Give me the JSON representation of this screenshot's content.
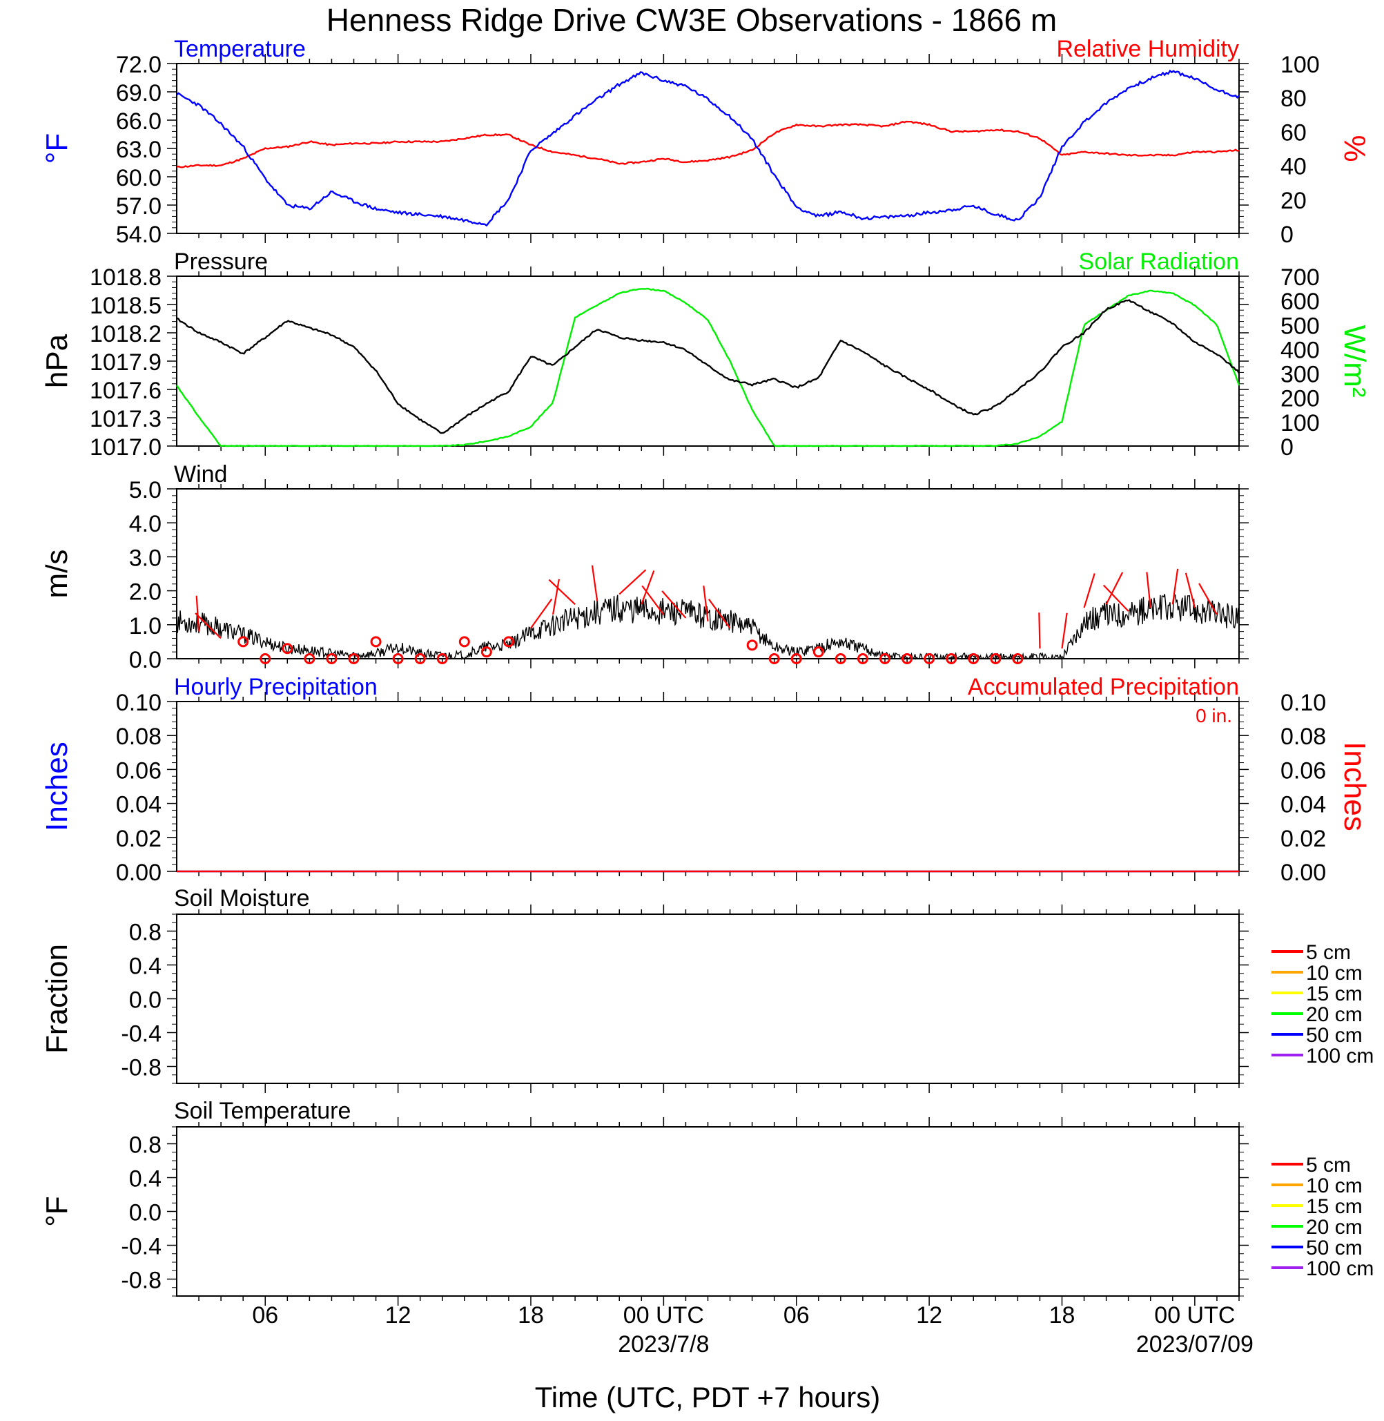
{
  "title": "Henness Ridge Drive CW3E Observations - 1866 m",
  "xaxis": {
    "label": "Time (UTC, PDT +7 hours)",
    "ticks": [
      "06",
      "12",
      "18",
      "00 UTC",
      "06",
      "12",
      "18",
      "00 UTC"
    ],
    "dates": [
      "2023/7/8",
      "2023/07/09"
    ]
  },
  "colors": {
    "temperature": "#0000ff",
    "humidity": "#ff0000",
    "pressure": "#000000",
    "solar": "#00ee00",
    "wind": "#000000",
    "wind_barbs": "#ff0000",
    "hourly_precip": "#0000ff",
    "accum_precip": "#ff0000"
  },
  "chart_data": [
    {
      "type": "line",
      "panel": "temperature-humidity",
      "left_title": "Temperature",
      "right_title": "Relative Humidity",
      "ylabel_left": "°F",
      "ylabel_right": "%",
      "ylim_left": [
        54,
        72
      ],
      "ylim_right": [
        0,
        100
      ],
      "left_ticks": [
        "72.0",
        "69.0",
        "66.0",
        "63.0",
        "60.0",
        "57.0",
        "54.0"
      ],
      "right_ticks": [
        "100",
        "80",
        "60",
        "40",
        "20",
        "0"
      ],
      "x_hours": [
        0,
        1,
        2,
        3,
        4,
        5,
        6,
        7,
        8,
        9,
        10,
        11,
        12,
        13,
        14,
        15,
        16,
        17,
        18,
        19,
        20,
        21,
        22,
        23,
        24,
        25,
        26,
        27,
        28,
        29,
        30,
        31,
        32,
        33,
        34,
        35,
        36,
        37,
        38,
        39,
        40,
        41,
        42,
        43,
        44,
        45,
        46,
        47,
        48
      ],
      "series": [
        {
          "name": "Temperature",
          "axis": "left",
          "values": [
            68.8,
            67.6,
            65.6,
            63.2,
            59.8,
            57.0,
            56.6,
            58.4,
            57.4,
            56.6,
            56.2,
            56.0,
            55.8,
            55.4,
            55.0,
            57.6,
            62.8,
            64.6,
            66.5,
            68.2,
            69.8,
            71.0,
            70.2,
            69.6,
            68.2,
            66.4,
            64.0,
            60.2,
            56.8,
            55.8,
            56.3,
            55.6,
            55.7,
            55.9,
            56.2,
            56.5,
            56.9,
            56.0,
            55.4,
            57.8,
            63.2,
            65.8,
            67.8,
            69.4,
            70.4,
            71.2,
            70.4,
            69.2,
            68.5
          ]
        },
        {
          "name": "Relative Humidity",
          "axis": "right",
          "values": [
            39,
            40,
            40,
            44,
            50,
            51,
            54,
            52,
            53,
            53,
            54,
            54,
            54,
            56,
            58,
            58,
            52,
            48,
            46,
            44,
            41,
            42,
            44,
            42,
            43,
            45,
            49,
            59,
            64,
            63,
            64,
            64,
            63,
            66,
            64,
            60,
            60,
            61,
            60,
            56,
            46,
            48,
            47,
            46,
            46,
            46,
            48,
            48,
            49
          ]
        }
      ]
    },
    {
      "type": "line",
      "panel": "pressure-solar",
      "left_title": "Pressure",
      "right_title": "Solar Radiation",
      "ylabel_left": "hPa",
      "ylabel_right": "W/m²",
      "ylim_left": [
        1017.0,
        1018.8
      ],
      "ylim_right": [
        0,
        700
      ],
      "left_ticks": [
        "1018.8",
        "1018.5",
        "1018.2",
        "1017.9",
        "1017.6",
        "1017.3",
        "1017.0"
      ],
      "right_ticks": [
        "700",
        "600",
        "500",
        "400",
        "300",
        "200",
        "100",
        "0"
      ],
      "x_hours": [
        0,
        1,
        2,
        3,
        4,
        5,
        6,
        7,
        8,
        9,
        10,
        11,
        12,
        13,
        14,
        15,
        16,
        17,
        18,
        19,
        20,
        21,
        22,
        23,
        24,
        25,
        26,
        27,
        28,
        29,
        30,
        31,
        32,
        33,
        34,
        35,
        36,
        37,
        38,
        39,
        40,
        41,
        42,
        43,
        44,
        45,
        46,
        47,
        48
      ],
      "series": [
        {
          "name": "Pressure",
          "axis": "left",
          "values": [
            1018.35,
            1018.2,
            1018.1,
            1017.98,
            1018.15,
            1018.33,
            1018.25,
            1018.18,
            1018.05,
            1017.8,
            1017.45,
            1017.28,
            1017.13,
            1017.3,
            1017.45,
            1017.58,
            1017.95,
            1017.85,
            1018.05,
            1018.24,
            1018.15,
            1018.12,
            1018.1,
            1018.02,
            1017.85,
            1017.7,
            1017.65,
            1017.71,
            1017.62,
            1017.72,
            1018.12,
            1018.0,
            1017.85,
            1017.72,
            1017.6,
            1017.45,
            1017.33,
            1017.42,
            1017.6,
            1017.78,
            1018.05,
            1018.2,
            1018.45,
            1018.55,
            1018.42,
            1018.3,
            1018.1,
            1017.98,
            1017.78
          ]
        },
        {
          "name": "Solar Radiation",
          "axis": "right",
          "values": [
            250,
            120,
            0,
            0,
            0,
            0,
            0,
            0,
            0,
            0,
            0,
            0,
            0,
            5,
            20,
            40,
            80,
            180,
            530,
            580,
            630,
            650,
            640,
            590,
            520,
            350,
            150,
            0,
            0,
            0,
            0,
            0,
            0,
            0,
            0,
            0,
            0,
            0,
            10,
            40,
            100,
            500,
            560,
            620,
            640,
            630,
            580,
            500,
            250
          ]
        }
      ]
    },
    {
      "type": "line",
      "panel": "wind",
      "left_title": "Wind",
      "ylabel_left": "m/s",
      "ylim": [
        0,
        5
      ],
      "left_ticks": [
        "5.0",
        "4.0",
        "3.0",
        "2.0",
        "1.0",
        "0.0"
      ],
      "x_hours": [
        0,
        1,
        2,
        3,
        4,
        5,
        6,
        7,
        8,
        9,
        10,
        11,
        12,
        13,
        14,
        15,
        16,
        17,
        18,
        19,
        20,
        21,
        22,
        23,
        24,
        25,
        26,
        27,
        28,
        29,
        30,
        31,
        32,
        33,
        34,
        35,
        36,
        37,
        38,
        39,
        40,
        41,
        42,
        43,
        44,
        45,
        46,
        47,
        48
      ],
      "series": [
        {
          "name": "Wind",
          "values": [
            1.1,
            1.05,
            0.9,
            0.7,
            0.5,
            0.3,
            0.25,
            0.15,
            0.1,
            0.15,
            0.35,
            0.15,
            0.1,
            0.1,
            0.35,
            0.4,
            0.75,
            1.0,
            1.2,
            1.4,
            1.5,
            1.45,
            1.4,
            1.35,
            1.25,
            1.1,
            0.9,
            0.35,
            0.2,
            0.35,
            0.5,
            0.3,
            0.1,
            0.05,
            0.05,
            0.05,
            0.05,
            0.05,
            0.05,
            0.05,
            0.05,
            1.1,
            1.3,
            1.35,
            1.45,
            1.5,
            1.45,
            1.3,
            1.25
          ]
        }
      ],
      "barbs": {
        "hours": [
          1,
          2,
          3,
          4,
          5,
          6,
          7,
          8,
          9,
          10,
          11,
          12,
          13,
          14,
          15,
          16,
          17,
          18,
          19,
          20,
          21,
          22,
          23,
          24,
          25,
          26,
          27,
          28,
          29,
          30,
          31,
          32,
          33,
          34,
          35,
          36,
          37,
          38,
          39,
          40,
          41,
          42,
          43,
          44,
          45,
          46,
          47
        ],
        "speeds": [
          0.8,
          0.6,
          0.5,
          0.3,
          0.3,
          0.3,
          0.3,
          0.3,
          0.5,
          0.3,
          0.3,
          0.3,
          0.5,
          0.4,
          0.5,
          0.9,
          1.3,
          1.6,
          1.7,
          1.9,
          1.6,
          1.3,
          1.2,
          1.1,
          0.9,
          0.8,
          0.4,
          0.3,
          0.3,
          0.8,
          0.3,
          0.3,
          0.3,
          0.3,
          0.3,
          0.3,
          0.3,
          0.3,
          0.3,
          0.3,
          1.5,
          1.6,
          1.4,
          1.5,
          1.6,
          1.5,
          1.3
        ],
        "calm_hours": [
          3,
          4,
          5,
          6,
          7,
          8,
          9,
          10,
          11,
          12,
          13,
          14,
          15,
          26,
          27,
          28,
          29,
          30,
          31,
          32,
          33,
          34,
          35,
          36,
          37,
          38
        ],
        "calm_values": [
          0.5,
          0.0,
          0.3,
          0.0,
          0.0,
          0.0,
          0.5,
          0.0,
          0.0,
          0.0,
          0.5,
          0.2,
          0.5,
          0.4,
          0.0,
          0.0,
          0.2,
          0.0,
          0.0,
          0.0,
          0.0,
          0.0,
          0.0,
          0.0,
          0.0,
          0.0
        ]
      }
    },
    {
      "type": "line",
      "panel": "precipitation",
      "left_title": "Hourly Precipitation",
      "right_title": "Accumulated Precipitation",
      "annotation": "0 in.",
      "ylabel_left": "Inches",
      "ylabel_right": "Inches",
      "ylim": [
        0,
        0.1
      ],
      "left_ticks": [
        "0.10",
        "0.08",
        "0.06",
        "0.04",
        "0.02",
        "0.00"
      ],
      "right_ticks": [
        "0.10",
        "0.08",
        "0.06",
        "0.04",
        "0.02",
        "0.00"
      ],
      "x_hours": [
        0,
        48
      ],
      "series": [
        {
          "name": "Hourly Precipitation",
          "values": [
            0,
            0
          ]
        },
        {
          "name": "Accumulated Precipitation",
          "values": [
            0,
            0
          ]
        }
      ]
    },
    {
      "type": "line",
      "panel": "soil-moisture",
      "left_title": "Soil Moisture",
      "ylabel_left": "Fraction",
      "ylim": [
        -1,
        1
      ],
      "left_ticks": [
        "0.8",
        "0.4",
        "0.0",
        "-0.4",
        "-0.8"
      ],
      "legend": [
        {
          "label": "5 cm",
          "color": "#ff0000"
        },
        {
          "label": "10 cm",
          "color": "#ffa500"
        },
        {
          "label": "15 cm",
          "color": "#ffff00"
        },
        {
          "label": "20 cm",
          "color": "#00ff00"
        },
        {
          "label": "50 cm",
          "color": "#0000ff"
        },
        {
          "label": "100 cm",
          "color": "#a020f0"
        }
      ]
    },
    {
      "type": "line",
      "panel": "soil-temperature",
      "left_title": "Soil Temperature",
      "ylabel_left": "°F",
      "ylim": [
        -1,
        1
      ],
      "left_ticks": [
        "0.8",
        "0.4",
        "0.0",
        "-0.4",
        "-0.8"
      ],
      "legend": [
        {
          "label": "5 cm",
          "color": "#ff0000"
        },
        {
          "label": "10 cm",
          "color": "#ffa500"
        },
        {
          "label": "15 cm",
          "color": "#ffff00"
        },
        {
          "label": "20 cm",
          "color": "#00ff00"
        },
        {
          "label": "50 cm",
          "color": "#0000ff"
        },
        {
          "label": "100 cm",
          "color": "#a020f0"
        }
      ]
    }
  ]
}
